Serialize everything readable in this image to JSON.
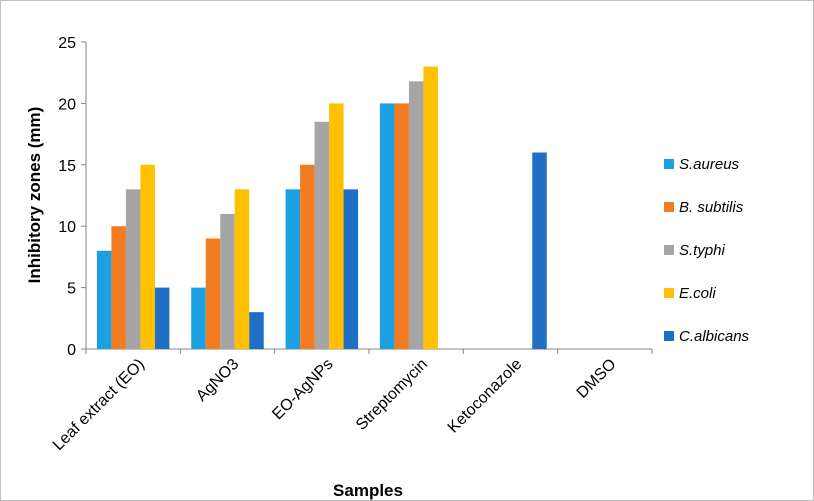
{
  "chart_data": {
    "type": "bar",
    "title": "",
    "xlabel": "Samples",
    "ylabel": "Inhibitory zones (mm)",
    "ylim": [
      0,
      25
    ],
    "yticks": [
      0,
      5,
      10,
      15,
      20,
      25
    ],
    "grid": false,
    "legend_position": "right",
    "categories": [
      "Leaf extract (EO)",
      "AgNO3",
      "EO-AgNPs",
      "Streptomycin",
      "Ketoconazole",
      "DMSO"
    ],
    "series": [
      {
        "name": "S.aureus",
        "color": "#1ba1e2",
        "values": [
          8,
          5,
          13,
          20,
          0,
          0
        ]
      },
      {
        "name": "B. subtilis",
        "color": "#f47c20",
        "values": [
          10,
          9,
          15,
          20,
          0,
          0
        ]
      },
      {
        "name": "S.typhi",
        "color": "#a5a5a5",
        "values": [
          13,
          11,
          18.5,
          21.8,
          0,
          0
        ]
      },
      {
        "name": "E.coli",
        "color": "#ffc000",
        "values": [
          15,
          13,
          20,
          23,
          0,
          0
        ]
      },
      {
        "name": "C.albicans",
        "color": "#1f6fc5",
        "values": [
          5,
          3,
          13,
          0,
          16,
          0
        ]
      }
    ]
  }
}
